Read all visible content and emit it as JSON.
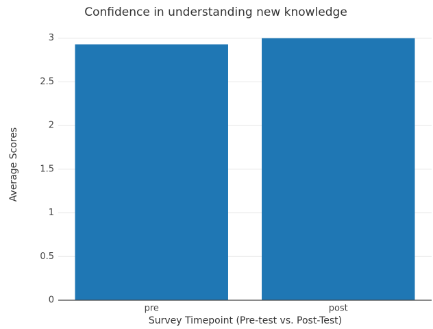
{
  "chart_data": {
    "type": "bar",
    "title": "Confidence in understanding new knowledge",
    "x_label": "Survey Timepoint (Pre-test vs. Post-Test)",
    "y_label": "Average Scores",
    "categories": [
      "pre",
      "post"
    ],
    "values": [
      2.93,
      3
    ],
    "color": "#1f77b4",
    "ylim": [
      0,
      3.1
    ],
    "yticks": [
      0,
      0.5,
      1,
      1.5,
      2,
      2.5,
      3
    ],
    "grid": true
  }
}
